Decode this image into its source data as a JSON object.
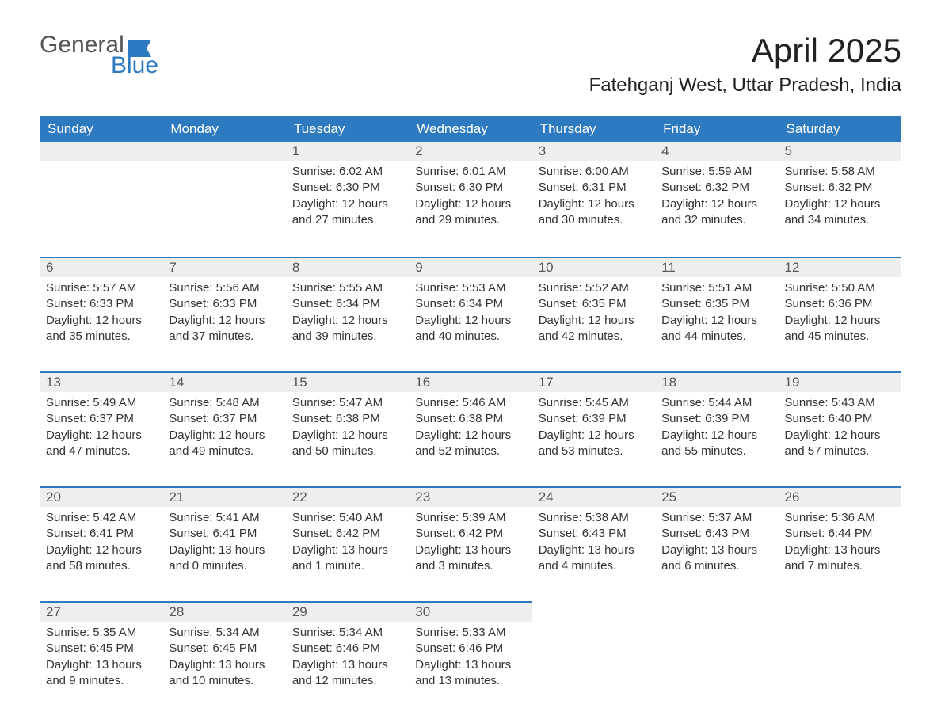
{
  "logo": {
    "word1": "General",
    "word2": "Blue"
  },
  "title": "April 2025",
  "location": "Fatehganj West, Uttar Pradesh, India",
  "colors": {
    "header_bg": "#2d7ac0",
    "header_text": "#ffffff",
    "daynum_bg": "#eeeeee",
    "row_border": "#2d7ac0",
    "body_text": "#333333",
    "logo_gray": "#555555",
    "logo_blue": "#2d7ac0",
    "page_bg": "#ffffff"
  },
  "typography": {
    "title_fontsize": 42,
    "location_fontsize": 24,
    "header_fontsize": 17,
    "daynum_fontsize": 17,
    "body_fontsize": 15,
    "font_family": "Segoe UI"
  },
  "weekdays": [
    "Sunday",
    "Monday",
    "Tuesday",
    "Wednesday",
    "Thursday",
    "Friday",
    "Saturday"
  ],
  "weeks": [
    [
      null,
      null,
      {
        "n": "1",
        "sr": "Sunrise: 6:02 AM",
        "ss": "Sunset: 6:30 PM",
        "d1": "Daylight: 12 hours",
        "d2": "and 27 minutes."
      },
      {
        "n": "2",
        "sr": "Sunrise: 6:01 AM",
        "ss": "Sunset: 6:30 PM",
        "d1": "Daylight: 12 hours",
        "d2": "and 29 minutes."
      },
      {
        "n": "3",
        "sr": "Sunrise: 6:00 AM",
        "ss": "Sunset: 6:31 PM",
        "d1": "Daylight: 12 hours",
        "d2": "and 30 minutes."
      },
      {
        "n": "4",
        "sr": "Sunrise: 5:59 AM",
        "ss": "Sunset: 6:32 PM",
        "d1": "Daylight: 12 hours",
        "d2": "and 32 minutes."
      },
      {
        "n": "5",
        "sr": "Sunrise: 5:58 AM",
        "ss": "Sunset: 6:32 PM",
        "d1": "Daylight: 12 hours",
        "d2": "and 34 minutes."
      }
    ],
    [
      {
        "n": "6",
        "sr": "Sunrise: 5:57 AM",
        "ss": "Sunset: 6:33 PM",
        "d1": "Daylight: 12 hours",
        "d2": "and 35 minutes."
      },
      {
        "n": "7",
        "sr": "Sunrise: 5:56 AM",
        "ss": "Sunset: 6:33 PM",
        "d1": "Daylight: 12 hours",
        "d2": "and 37 minutes."
      },
      {
        "n": "8",
        "sr": "Sunrise: 5:55 AM",
        "ss": "Sunset: 6:34 PM",
        "d1": "Daylight: 12 hours",
        "d2": "and 39 minutes."
      },
      {
        "n": "9",
        "sr": "Sunrise: 5:53 AM",
        "ss": "Sunset: 6:34 PM",
        "d1": "Daylight: 12 hours",
        "d2": "and 40 minutes."
      },
      {
        "n": "10",
        "sr": "Sunrise: 5:52 AM",
        "ss": "Sunset: 6:35 PM",
        "d1": "Daylight: 12 hours",
        "d2": "and 42 minutes."
      },
      {
        "n": "11",
        "sr": "Sunrise: 5:51 AM",
        "ss": "Sunset: 6:35 PM",
        "d1": "Daylight: 12 hours",
        "d2": "and 44 minutes."
      },
      {
        "n": "12",
        "sr": "Sunrise: 5:50 AM",
        "ss": "Sunset: 6:36 PM",
        "d1": "Daylight: 12 hours",
        "d2": "and 45 minutes."
      }
    ],
    [
      {
        "n": "13",
        "sr": "Sunrise: 5:49 AM",
        "ss": "Sunset: 6:37 PM",
        "d1": "Daylight: 12 hours",
        "d2": "and 47 minutes."
      },
      {
        "n": "14",
        "sr": "Sunrise: 5:48 AM",
        "ss": "Sunset: 6:37 PM",
        "d1": "Daylight: 12 hours",
        "d2": "and 49 minutes."
      },
      {
        "n": "15",
        "sr": "Sunrise: 5:47 AM",
        "ss": "Sunset: 6:38 PM",
        "d1": "Daylight: 12 hours",
        "d2": "and 50 minutes."
      },
      {
        "n": "16",
        "sr": "Sunrise: 5:46 AM",
        "ss": "Sunset: 6:38 PM",
        "d1": "Daylight: 12 hours",
        "d2": "and 52 minutes."
      },
      {
        "n": "17",
        "sr": "Sunrise: 5:45 AM",
        "ss": "Sunset: 6:39 PM",
        "d1": "Daylight: 12 hours",
        "d2": "and 53 minutes."
      },
      {
        "n": "18",
        "sr": "Sunrise: 5:44 AM",
        "ss": "Sunset: 6:39 PM",
        "d1": "Daylight: 12 hours",
        "d2": "and 55 minutes."
      },
      {
        "n": "19",
        "sr": "Sunrise: 5:43 AM",
        "ss": "Sunset: 6:40 PM",
        "d1": "Daylight: 12 hours",
        "d2": "and 57 minutes."
      }
    ],
    [
      {
        "n": "20",
        "sr": "Sunrise: 5:42 AM",
        "ss": "Sunset: 6:41 PM",
        "d1": "Daylight: 12 hours",
        "d2": "and 58 minutes."
      },
      {
        "n": "21",
        "sr": "Sunrise: 5:41 AM",
        "ss": "Sunset: 6:41 PM",
        "d1": "Daylight: 13 hours",
        "d2": "and 0 minutes."
      },
      {
        "n": "22",
        "sr": "Sunrise: 5:40 AM",
        "ss": "Sunset: 6:42 PM",
        "d1": "Daylight: 13 hours",
        "d2": "and 1 minute."
      },
      {
        "n": "23",
        "sr": "Sunrise: 5:39 AM",
        "ss": "Sunset: 6:42 PM",
        "d1": "Daylight: 13 hours",
        "d2": "and 3 minutes."
      },
      {
        "n": "24",
        "sr": "Sunrise: 5:38 AM",
        "ss": "Sunset: 6:43 PM",
        "d1": "Daylight: 13 hours",
        "d2": "and 4 minutes."
      },
      {
        "n": "25",
        "sr": "Sunrise: 5:37 AM",
        "ss": "Sunset: 6:43 PM",
        "d1": "Daylight: 13 hours",
        "d2": "and 6 minutes."
      },
      {
        "n": "26",
        "sr": "Sunrise: 5:36 AM",
        "ss": "Sunset: 6:44 PM",
        "d1": "Daylight: 13 hours",
        "d2": "and 7 minutes."
      }
    ],
    [
      {
        "n": "27",
        "sr": "Sunrise: 5:35 AM",
        "ss": "Sunset: 6:45 PM",
        "d1": "Daylight: 13 hours",
        "d2": "and 9 minutes."
      },
      {
        "n": "28",
        "sr": "Sunrise: 5:34 AM",
        "ss": "Sunset: 6:45 PM",
        "d1": "Daylight: 13 hours",
        "d2": "and 10 minutes."
      },
      {
        "n": "29",
        "sr": "Sunrise: 5:34 AM",
        "ss": "Sunset: 6:46 PM",
        "d1": "Daylight: 13 hours",
        "d2": "and 12 minutes."
      },
      {
        "n": "30",
        "sr": "Sunrise: 5:33 AM",
        "ss": "Sunset: 6:46 PM",
        "d1": "Daylight: 13 hours",
        "d2": "and 13 minutes."
      },
      null,
      null,
      null
    ]
  ]
}
